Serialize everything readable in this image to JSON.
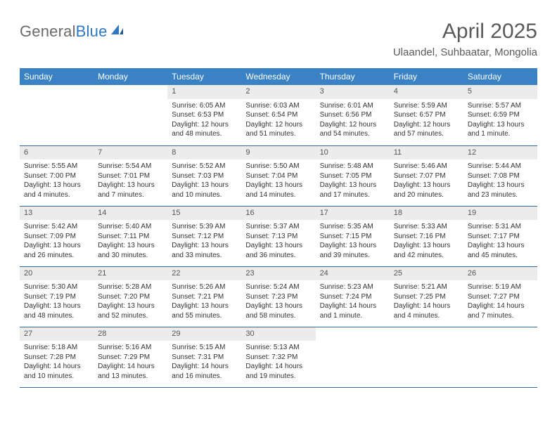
{
  "logo": {
    "part1": "General",
    "part2": "Blue"
  },
  "title": "April 2025",
  "subtitle": "Ulaandel, Suhbaatar, Mongolia",
  "day_headers": [
    "Sunday",
    "Monday",
    "Tuesday",
    "Wednesday",
    "Thursday",
    "Friday",
    "Saturday"
  ],
  "colors": {
    "header_bg": "#3a82c4",
    "header_fg": "#ffffff",
    "daynum_bg": "#ececec",
    "row_border": "#2f6aa5",
    "logo_gray": "#6a6a6a",
    "logo_blue": "#2f78c2"
  },
  "weeks": [
    [
      null,
      null,
      {
        "n": "1",
        "sunrise": "Sunrise: 6:05 AM",
        "sunset": "Sunset: 6:53 PM",
        "day1": "Daylight: 12 hours",
        "day2": "and 48 minutes."
      },
      {
        "n": "2",
        "sunrise": "Sunrise: 6:03 AM",
        "sunset": "Sunset: 6:54 PM",
        "day1": "Daylight: 12 hours",
        "day2": "and 51 minutes."
      },
      {
        "n": "3",
        "sunrise": "Sunrise: 6:01 AM",
        "sunset": "Sunset: 6:56 PM",
        "day1": "Daylight: 12 hours",
        "day2": "and 54 minutes."
      },
      {
        "n": "4",
        "sunrise": "Sunrise: 5:59 AM",
        "sunset": "Sunset: 6:57 PM",
        "day1": "Daylight: 12 hours",
        "day2": "and 57 minutes."
      },
      {
        "n": "5",
        "sunrise": "Sunrise: 5:57 AM",
        "sunset": "Sunset: 6:59 PM",
        "day1": "Daylight: 13 hours",
        "day2": "and 1 minute."
      }
    ],
    [
      {
        "n": "6",
        "sunrise": "Sunrise: 5:55 AM",
        "sunset": "Sunset: 7:00 PM",
        "day1": "Daylight: 13 hours",
        "day2": "and 4 minutes."
      },
      {
        "n": "7",
        "sunrise": "Sunrise: 5:54 AM",
        "sunset": "Sunset: 7:01 PM",
        "day1": "Daylight: 13 hours",
        "day2": "and 7 minutes."
      },
      {
        "n": "8",
        "sunrise": "Sunrise: 5:52 AM",
        "sunset": "Sunset: 7:03 PM",
        "day1": "Daylight: 13 hours",
        "day2": "and 10 minutes."
      },
      {
        "n": "9",
        "sunrise": "Sunrise: 5:50 AM",
        "sunset": "Sunset: 7:04 PM",
        "day1": "Daylight: 13 hours",
        "day2": "and 14 minutes."
      },
      {
        "n": "10",
        "sunrise": "Sunrise: 5:48 AM",
        "sunset": "Sunset: 7:05 PM",
        "day1": "Daylight: 13 hours",
        "day2": "and 17 minutes."
      },
      {
        "n": "11",
        "sunrise": "Sunrise: 5:46 AM",
        "sunset": "Sunset: 7:07 PM",
        "day1": "Daylight: 13 hours",
        "day2": "and 20 minutes."
      },
      {
        "n": "12",
        "sunrise": "Sunrise: 5:44 AM",
        "sunset": "Sunset: 7:08 PM",
        "day1": "Daylight: 13 hours",
        "day2": "and 23 minutes."
      }
    ],
    [
      {
        "n": "13",
        "sunrise": "Sunrise: 5:42 AM",
        "sunset": "Sunset: 7:09 PM",
        "day1": "Daylight: 13 hours",
        "day2": "and 26 minutes."
      },
      {
        "n": "14",
        "sunrise": "Sunrise: 5:40 AM",
        "sunset": "Sunset: 7:11 PM",
        "day1": "Daylight: 13 hours",
        "day2": "and 30 minutes."
      },
      {
        "n": "15",
        "sunrise": "Sunrise: 5:39 AM",
        "sunset": "Sunset: 7:12 PM",
        "day1": "Daylight: 13 hours",
        "day2": "and 33 minutes."
      },
      {
        "n": "16",
        "sunrise": "Sunrise: 5:37 AM",
        "sunset": "Sunset: 7:13 PM",
        "day1": "Daylight: 13 hours",
        "day2": "and 36 minutes."
      },
      {
        "n": "17",
        "sunrise": "Sunrise: 5:35 AM",
        "sunset": "Sunset: 7:15 PM",
        "day1": "Daylight: 13 hours",
        "day2": "and 39 minutes."
      },
      {
        "n": "18",
        "sunrise": "Sunrise: 5:33 AM",
        "sunset": "Sunset: 7:16 PM",
        "day1": "Daylight: 13 hours",
        "day2": "and 42 minutes."
      },
      {
        "n": "19",
        "sunrise": "Sunrise: 5:31 AM",
        "sunset": "Sunset: 7:17 PM",
        "day1": "Daylight: 13 hours",
        "day2": "and 45 minutes."
      }
    ],
    [
      {
        "n": "20",
        "sunrise": "Sunrise: 5:30 AM",
        "sunset": "Sunset: 7:19 PM",
        "day1": "Daylight: 13 hours",
        "day2": "and 48 minutes."
      },
      {
        "n": "21",
        "sunrise": "Sunrise: 5:28 AM",
        "sunset": "Sunset: 7:20 PM",
        "day1": "Daylight: 13 hours",
        "day2": "and 52 minutes."
      },
      {
        "n": "22",
        "sunrise": "Sunrise: 5:26 AM",
        "sunset": "Sunset: 7:21 PM",
        "day1": "Daylight: 13 hours",
        "day2": "and 55 minutes."
      },
      {
        "n": "23",
        "sunrise": "Sunrise: 5:24 AM",
        "sunset": "Sunset: 7:23 PM",
        "day1": "Daylight: 13 hours",
        "day2": "and 58 minutes."
      },
      {
        "n": "24",
        "sunrise": "Sunrise: 5:23 AM",
        "sunset": "Sunset: 7:24 PM",
        "day1": "Daylight: 14 hours",
        "day2": "and 1 minute."
      },
      {
        "n": "25",
        "sunrise": "Sunrise: 5:21 AM",
        "sunset": "Sunset: 7:25 PM",
        "day1": "Daylight: 14 hours",
        "day2": "and 4 minutes."
      },
      {
        "n": "26",
        "sunrise": "Sunrise: 5:19 AM",
        "sunset": "Sunset: 7:27 PM",
        "day1": "Daylight: 14 hours",
        "day2": "and 7 minutes."
      }
    ],
    [
      {
        "n": "27",
        "sunrise": "Sunrise: 5:18 AM",
        "sunset": "Sunset: 7:28 PM",
        "day1": "Daylight: 14 hours",
        "day2": "and 10 minutes."
      },
      {
        "n": "28",
        "sunrise": "Sunrise: 5:16 AM",
        "sunset": "Sunset: 7:29 PM",
        "day1": "Daylight: 14 hours",
        "day2": "and 13 minutes."
      },
      {
        "n": "29",
        "sunrise": "Sunrise: 5:15 AM",
        "sunset": "Sunset: 7:31 PM",
        "day1": "Daylight: 14 hours",
        "day2": "and 16 minutes."
      },
      {
        "n": "30",
        "sunrise": "Sunrise: 5:13 AM",
        "sunset": "Sunset: 7:32 PM",
        "day1": "Daylight: 14 hours",
        "day2": "and 19 minutes."
      },
      null,
      null,
      null
    ]
  ]
}
